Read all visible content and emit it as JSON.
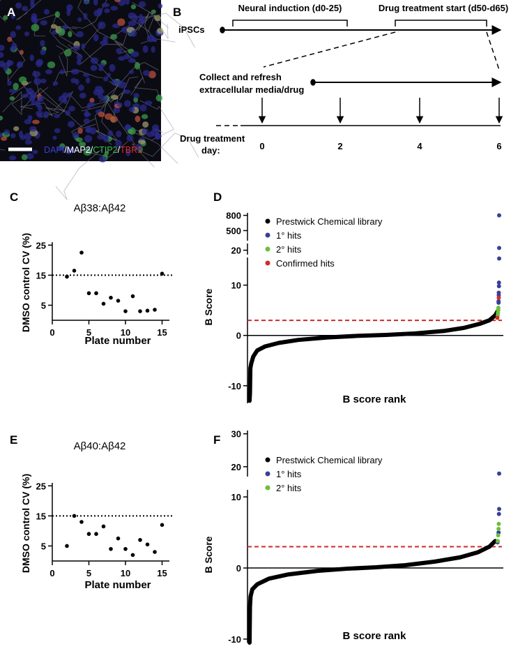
{
  "panel_labels": [
    "A",
    "B",
    "C",
    "D",
    "E",
    "F"
  ],
  "panel_a": {
    "stain_parts": [
      {
        "text": "DAPI",
        "color": "#3b3fd0"
      },
      {
        "text": "/MAP2/",
        "color": "#ffffff"
      },
      {
        "text": "CTIP2",
        "color": "#3cc04a"
      },
      {
        "text": "/",
        "color": "#ffffff"
      },
      {
        "text": "TBR1",
        "color": "#e02a2a"
      }
    ]
  },
  "panel_b": {
    "phase_1": "Neural induction (d0-25)",
    "phase_2": "Drug treatment start (d50-d65)",
    "start": "iPSCs",
    "collect_lines": [
      "Collect and refresh",
      "extracellular media/drug"
    ],
    "day_label_lines": [
      "Drug treatment",
      "day:"
    ],
    "days": [
      "0",
      "2",
      "4",
      "6"
    ]
  },
  "chart_data": [
    {
      "type": "scatter",
      "title": "Aβ38:Aβ42",
      "x_label": "Plate number",
      "y_label": "DMSO control CV (%)",
      "x": [
        2,
        3,
        4,
        5,
        6,
        7,
        8,
        9,
        10,
        11,
        12,
        13,
        14,
        15
      ],
      "values": [
        14.5,
        16.5,
        22.5,
        9,
        9,
        5.5,
        7.5,
        6.5,
        3,
        8,
        3,
        3.2,
        3.5,
        15.5
      ],
      "color": "#000000",
      "xlim": [
        0,
        16
      ],
      "ylim": [
        0,
        26
      ],
      "xticks": [
        0,
        5,
        10,
        15
      ],
      "yticks": [
        5,
        15,
        25
      ],
      "reference_line": 15,
      "reference_style": "dotted",
      "reference_color": "#000000"
    },
    {
      "type": "scatter",
      "x_label": "B score rank",
      "y_label": "B Score",
      "xlim": [
        1,
        1280
      ],
      "ylim_segments": [
        [
          -13.5,
          15.5
        ],
        [
          18,
          23
        ],
        [
          300,
          850
        ]
      ],
      "yticks": [
        -10,
        0,
        10,
        20,
        500,
        800
      ],
      "reference_line": 3,
      "reference_style": "dashed",
      "reference_color": "#cc2a2a",
      "zero_line": true,
      "series": [
        {
          "name": "Prestwick Chemical library",
          "color": "#000000",
          "mode": "line",
          "x": [
            1,
            3,
            5,
            10,
            20,
            40,
            80,
            150,
            250,
            400,
            550,
            700,
            850,
            1000,
            1100,
            1180,
            1230,
            1260,
            1275
          ],
          "values": [
            -13,
            -11.5,
            -6.5,
            -5.5,
            -4.2,
            -3,
            -2.2,
            -1.5,
            -0.9,
            -0.4,
            -0.1,
            0.1,
            0.4,
            0.9,
            1.5,
            2.3,
            3,
            4,
            5
          ]
        },
        {
          "name": "1° hits",
          "color": "#3a3f9a",
          "mode": "markers",
          "x": [
            1280,
            1280,
            1280,
            1279,
            1279,
            1278,
            1278,
            1277,
            1277
          ],
          "values": [
            800,
            21,
            15.3,
            10.5,
            9.8,
            8.5,
            8,
            6.8,
            6.5
          ]
        },
        {
          "name": "2° hits",
          "color": "#6cbf3c",
          "mode": "markers",
          "x": [
            1276,
            1275,
            1274,
            1273
          ],
          "values": [
            5.5,
            5,
            4.5,
            4
          ]
        },
        {
          "name": "Confirmed hits",
          "color": "#d42a2a",
          "mode": "markers",
          "x": [
            1278,
            1271
          ],
          "values": [
            7.5,
            3.5
          ]
        }
      ]
    },
    {
      "type": "scatter",
      "title": "Aβ40:Aβ42",
      "x_label": "Plate number",
      "y_label": "DMSO control CV (%)",
      "x": [
        2,
        3,
        4,
        5,
        6,
        7,
        8,
        9,
        10,
        11,
        12,
        13,
        14,
        15
      ],
      "values": [
        5,
        15,
        13,
        9,
        9,
        11.5,
        4,
        7.5,
        4,
        2,
        7,
        5.5,
        3,
        12
      ],
      "color": "#000000",
      "xlim": [
        0,
        16
      ],
      "ylim": [
        0,
        26
      ],
      "xticks": [
        0,
        5,
        10,
        15
      ],
      "yticks": [
        5,
        15,
        25
      ],
      "reference_line": 15,
      "reference_style": "dotted",
      "reference_color": "#000000"
    },
    {
      "type": "scatter",
      "x_label": "B score rank",
      "y_label": "B Score",
      "xlim": [
        1,
        1280
      ],
      "ylim_segments": [
        [
          -10.5,
          11
        ],
        [
          17,
          31
        ]
      ],
      "yticks": [
        -10,
        0,
        10,
        20,
        30
      ],
      "reference_line": 3,
      "reference_style": "dashed",
      "reference_color": "#cc2a2a",
      "zero_line": true,
      "series": [
        {
          "name": "Prestwick Chemical library",
          "color": "#000000",
          "mode": "line",
          "x": [
            1,
            3,
            6,
            15,
            40,
            100,
            200,
            350,
            500,
            650,
            800,
            950,
            1080,
            1170,
            1230,
            1260
          ],
          "values": [
            -10.5,
            -5.5,
            -4,
            -3,
            -2.3,
            -1.5,
            -0.9,
            -0.4,
            -0.1,
            0.1,
            0.4,
            0.9,
            1.5,
            2.2,
            3,
            3.8
          ]
        },
        {
          "name": "1° hits",
          "color": "#3a3f9a",
          "mode": "markers",
          "x": [
            1280,
            1280,
            1279,
            1277,
            1272
          ],
          "values": [
            17.9,
            8.3,
            7.6,
            5,
            3.6
          ]
        },
        {
          "name": "2° hits",
          "color": "#6cbf3c",
          "mode": "markers",
          "x": [
            1278,
            1277,
            1275,
            1273
          ],
          "values": [
            6.2,
            5.5,
            4.6,
            3.8
          ]
        }
      ]
    }
  ]
}
